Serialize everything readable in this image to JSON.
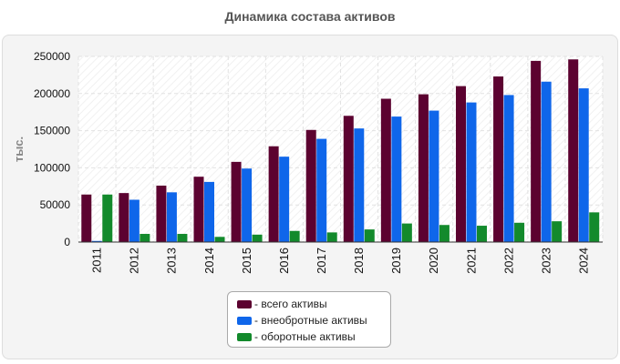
{
  "chart_data": {
    "type": "bar",
    "title": "Динамика состава активов",
    "ylabel": "тыс.",
    "xlabel": "",
    "ylim": [
      0,
      250000
    ],
    "yticks": [
      0,
      50000,
      100000,
      150000,
      200000,
      250000
    ],
    "categories": [
      "2011",
      "2012",
      "2013",
      "2014",
      "2015",
      "2016",
      "2017",
      "2018",
      "2019",
      "2020",
      "2021",
      "2022",
      "2023",
      "2024"
    ],
    "series": [
      {
        "name": "- всего активы",
        "color": "#5c0230",
        "values": [
          64000,
          66000,
          76000,
          88000,
          108000,
          129000,
          151000,
          170000,
          193000,
          199000,
          210000,
          223000,
          244000,
          246000
        ]
      },
      {
        "name": "- внеобротные активы",
        "color": "#0f66ea",
        "values": [
          1500,
          57000,
          67000,
          81000,
          99000,
          115000,
          139000,
          153000,
          169000,
          177000,
          188000,
          198000,
          216000,
          207000
        ]
      },
      {
        "name": "- оборотные активы",
        "color": "#138a2c",
        "values": [
          64000,
          11000,
          11000,
          7000,
          10000,
          15000,
          13000,
          17000,
          25000,
          23000,
          22000,
          26000,
          28000,
          40000
        ]
      }
    ],
    "legend_position": "bottom",
    "grid": true
  }
}
